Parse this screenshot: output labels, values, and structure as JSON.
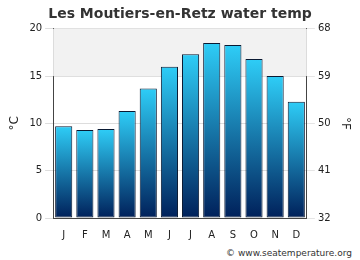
{
  "chart_data": {
    "type": "bar",
    "title": "Les Moutiers-en-Retz water temp",
    "categories": [
      "J",
      "F",
      "M",
      "A",
      "M",
      "J",
      "J",
      "A",
      "S",
      "O",
      "N",
      "D"
    ],
    "values": [
      9.7,
      9.3,
      9.4,
      11.3,
      13.7,
      16.0,
      17.3,
      18.5,
      18.3,
      16.8,
      15.0,
      12.3
    ],
    "color": "#2ecdf7",
    "y_label": "°C",
    "y2_label": "°F",
    "ylim": [
      0,
      20
    ],
    "yticks": [
      0,
      5,
      10,
      15,
      20
    ],
    "y2lim": [
      32,
      68
    ],
    "y2ticks": [
      32,
      41,
      50,
      59,
      68
    ],
    "grid": true,
    "annotations": [
      "© www.seatemperature.org"
    ]
  }
}
